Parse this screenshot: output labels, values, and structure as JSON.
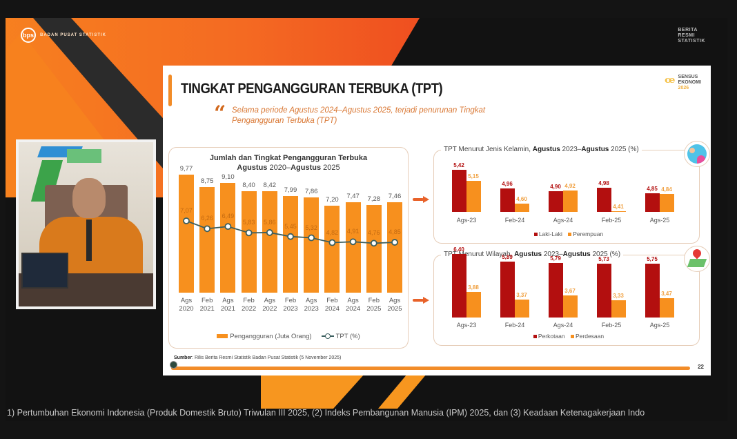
{
  "broadcast": {
    "top_left_logo": "BADAN PUSAT STATISTIK",
    "top_right_logo": [
      "BERITA",
      "RESMI",
      "STATISTIK"
    ],
    "ticker": "1) Pertumbuhan Ekonomi Indonesia (Produk Domestik Bruto) Triwulan III 2025, (2) Indeks Pembangunan Manusia (IPM) 2025, dan (3) Keadaan Ketenagakerjaan Indo"
  },
  "slide": {
    "title": "TINGKAT PENGANGGURAN TERBUKA (TPT)",
    "quote": "Selama periode Agustus 2024–Agustus 2025, terjadi penurunan Tingkat Pengangguran Terbuka (TPT)",
    "sensus_logo": {
      "line1": "SENSUS",
      "line2": "EKONOMI",
      "year": "2026"
    },
    "source_label": "Sumber",
    "source_text": ": Rilis Berita Resmi Statistik Badan Pusat Statistik (5 November 2025)",
    "page_number": "22",
    "colors": {
      "orange": "#f7901e",
      "dark_red": "#b30f0f",
      "line": "#3b5e5e",
      "accent": "#f28c28"
    }
  },
  "chart_data": [
    {
      "type": "bar+line",
      "title": "Jumlah dan Tingkat Pengangguran Terbuka",
      "subtitle_parts": [
        "Agustus",
        " 2020–",
        "Agustus",
        " 2025"
      ],
      "categories": [
        [
          "Ags",
          "2020"
        ],
        [
          "Feb",
          "2021"
        ],
        [
          "Ags",
          "2021"
        ],
        [
          "Feb",
          "2022"
        ],
        [
          "Ags",
          "2022"
        ],
        [
          "Feb",
          "2023"
        ],
        [
          "Ags",
          "2023"
        ],
        [
          "Feb",
          "2024"
        ],
        [
          "Ags",
          "2024"
        ],
        [
          "Feb",
          "2025"
        ],
        [
          "Ags",
          "2025"
        ]
      ],
      "series": [
        {
          "name": "Pengangguran (Juta Orang)",
          "type": "bar",
          "values": [
            "9,77",
            "8,75",
            "9,10",
            "8,40",
            "8,42",
            "7,99",
            "7,86",
            "7,20",
            "7,47",
            "7,28",
            "7,46"
          ],
          "numeric": [
            9.77,
            8.75,
            9.1,
            8.4,
            8.42,
            7.99,
            7.86,
            7.2,
            7.47,
            7.28,
            7.46
          ]
        },
        {
          "name": "TPT (%)",
          "type": "line",
          "values": [
            "7,07",
            "6,26",
            "6,49",
            "5,83",
            "5,86",
            "5,45",
            "5,32",
            "4,82",
            "4,91",
            "4,76",
            "4,85"
          ],
          "numeric": [
            7.07,
            6.26,
            6.49,
            5.83,
            5.86,
            5.45,
            5.32,
            4.82,
            4.91,
            4.76,
            4.85
          ]
        }
      ],
      "legend": [
        "Pengangguran (Juta Orang)",
        "TPT (%)"
      ],
      "legend_position": "bottom",
      "grid": false
    },
    {
      "type": "bar",
      "title_parts": [
        "TPT Menurut Jenis Kelamin, ",
        "Agustus",
        " 2023–",
        "Agustus",
        " 2025 (%)"
      ],
      "categories": [
        "Ags-23",
        "Feb-24",
        "Ags-24",
        "Feb-25",
        "Ags-25"
      ],
      "series": [
        {
          "name": "Laki-Laki",
          "values": [
            "5,42",
            "4,96",
            "4,90",
            "4,98",
            "4,85"
          ],
          "numeric": [
            5.42,
            4.96,
            4.9,
            4.98,
            4.85
          ]
        },
        {
          "name": "Perempuan",
          "values": [
            "5,15",
            "4,60",
            "4,92",
            "4,41",
            "4,84"
          ],
          "numeric": [
            5.15,
            4.6,
            4.92,
            4.41,
            4.84
          ]
        }
      ],
      "legend": [
        "Laki-Laki",
        "Perempuan"
      ],
      "legend_position": "bottom"
    },
    {
      "type": "bar",
      "title_parts": [
        "TPT Menurut Wilayah, ",
        "Agustus",
        " 2023–",
        "Agustus",
        " 2025 (%)"
      ],
      "categories": [
        "Ags-23",
        "Feb-24",
        "Ags-24",
        "Feb-25",
        "Ags-25"
      ],
      "series": [
        {
          "name": "Perkotaan",
          "values": [
            "6,40",
            "5,89",
            "5,79",
            "5,73",
            "5,75"
          ],
          "numeric": [
            6.4,
            5.89,
            5.79,
            5.73,
            5.75
          ]
        },
        {
          "name": "Perdesaan",
          "values": [
            "3,88",
            "3,37",
            "3,67",
            "3,33",
            "3,47"
          ],
          "numeric": [
            3.88,
            3.37,
            3.67,
            3.33,
            3.47
          ]
        }
      ],
      "legend": [
        "Perkotaan",
        "Perdesaan"
      ],
      "legend_position": "bottom"
    }
  ]
}
